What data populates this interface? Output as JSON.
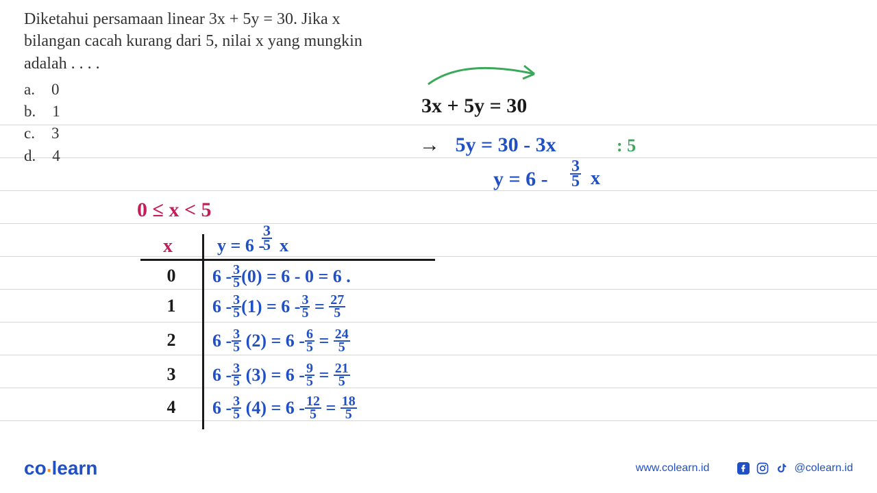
{
  "background": {
    "line_color": "#d6d6d6",
    "line_positions": [
      182,
      230,
      278,
      326,
      374,
      422,
      470,
      518,
      566,
      614
    ]
  },
  "question": {
    "line1": "Diketahui persamaan linear 3x + 5y = 30. Jika x",
    "line2": "bilangan cacah kurang dari 5, nilai x yang mungkin",
    "line3": "adalah . . . .",
    "fontsize": 24,
    "color": "#333333"
  },
  "options": {
    "a": {
      "letter": "a.",
      "value": "0"
    },
    "b": {
      "letter": "b.",
      "value": "1"
    },
    "c": {
      "letter": "c.",
      "value": "3"
    },
    "d": {
      "letter": "d.",
      "value": "4"
    },
    "fontsize": 23
  },
  "arrow": {
    "color": "#3ba85a",
    "stroke_width": 3
  },
  "handwritten": {
    "colors": {
      "blue": "#2050c4",
      "black": "#1a1a1a",
      "red": "#c41e5a",
      "green": "#3ba85a"
    },
    "eq_main": "3x + 5y = 30",
    "eq_step1_arrow": "→",
    "eq_step1": "5y = 30 - 3x",
    "eq_step1_div": ": 5",
    "eq_step2_lhs": "y = 6 -",
    "eq_step2_frac_n": "3",
    "eq_step2_frac_d": "5",
    "eq_step2_x": "x",
    "constraint": "0 ≤ x  < 5",
    "table_header_x": "x",
    "table_header_y_prefix": "y = 6 -",
    "table_header_frac_n": "3",
    "table_header_frac_d": "5",
    "table_header_y_suffix": "x"
  },
  "table": {
    "vline_color": "#1a1a1a",
    "hline_color": "#1a1a1a",
    "rows": [
      {
        "x": "0",
        "p1": "6 -",
        "fn": "3",
        "fd": "5",
        "p2": "(0) = 6 - 0 = 6 .",
        "mid_fn": "",
        "mid_fd": "",
        "p3": "",
        "res_fn": "",
        "res_fd": ""
      },
      {
        "x": "1",
        "p1": "6 -",
        "fn": "3",
        "fd": "5",
        "p2": "(1) = 6 -",
        "mid_fn": "3",
        "mid_fd": "5",
        "p3": " = ",
        "res_fn": "27",
        "res_fd": "5"
      },
      {
        "x": "2",
        "p1": "6 -",
        "fn": "3",
        "fd": "5",
        "p2": " (2) = 6 -",
        "mid_fn": "6",
        "mid_fd": "5",
        "p3": " = ",
        "res_fn": "24",
        "res_fd": "5"
      },
      {
        "x": "3",
        "p1": "6 -",
        "fn": "3",
        "fd": "5",
        "p2": " (3) = 6 -",
        "mid_fn": "9",
        "mid_fd": "5",
        "p3": " = ",
        "res_fn": "21",
        "res_fd": "5"
      },
      {
        "x": "4",
        "p1": "6 -",
        "fn": "3",
        "fd": "5",
        "p2": " (4) = 6 -",
        "mid_fn": "12",
        "mid_fd": "5",
        "p3": " = ",
        "res_fn": "18",
        "res_fd": "5"
      }
    ],
    "row_top_positions": [
      388,
      432,
      482,
      532,
      580
    ],
    "x_color": "#1a1a1a",
    "calc_color": "#2050c4",
    "fontsize": 26
  },
  "footer": {
    "logo_co": "co",
    "logo_sep": ".",
    "logo_learn": "learn",
    "url": "www.colearn.id",
    "handle": "@colearn.id",
    "color": "#2050c4"
  }
}
